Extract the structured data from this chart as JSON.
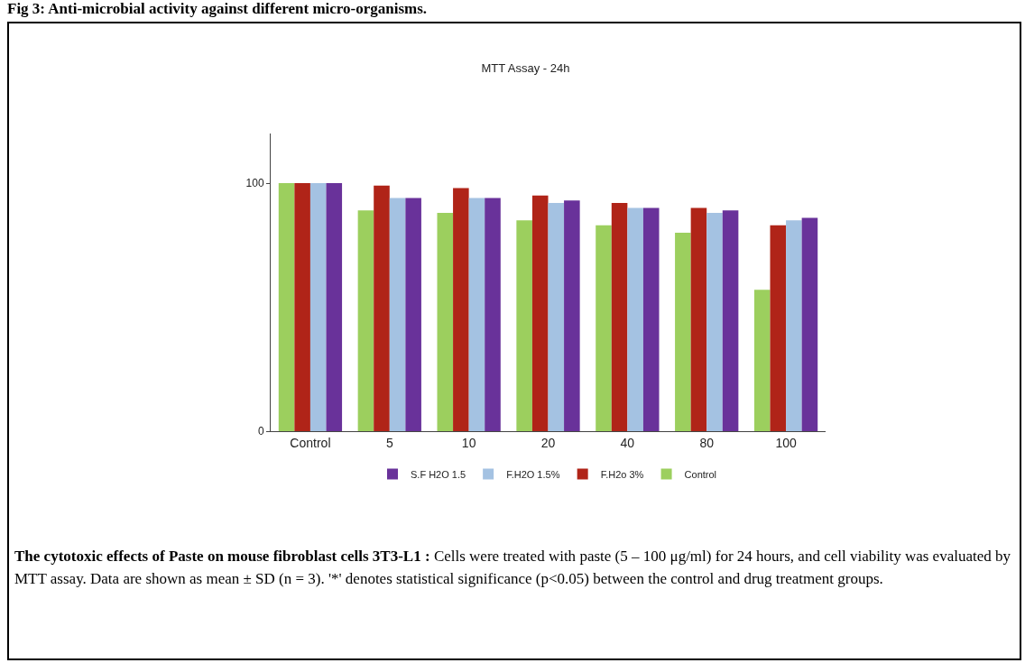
{
  "chart_data": {
    "type": "bar",
    "title": "MTT Assay - 24h",
    "categories": [
      "Control",
      "5",
      "10",
      "20",
      "40",
      "80",
      "100"
    ],
    "series": [
      {
        "name": "Control",
        "color": "#9ccf5e",
        "values": [
          100,
          89,
          88,
          85,
          83,
          80,
          57
        ]
      },
      {
        "name": "F.H2o 3%",
        "color": "#b02418",
        "values": [
          100,
          99,
          98,
          95,
          92,
          90,
          83
        ]
      },
      {
        "name": "F.H2O 1.5%",
        "color": "#a4c2e2",
        "values": [
          100,
          94,
          94,
          92,
          90,
          88,
          85
        ]
      },
      {
        "name": "S.F H2O 1.5",
        "color": "#69329a",
        "values": [
          100,
          94,
          94,
          93,
          90,
          89,
          86
        ]
      }
    ],
    "ylim": [
      0,
      120
    ],
    "yticks": [
      0,
      100
    ],
    "grid": false,
    "legend": "bottom",
    "annotations": [
      "Fig 3: Anti-microbial activity against different micro-organisms.",
      "The cytotoxic effects of Paste on mouse fibroblast cells 3T3-L1 :",
      "Cells were treated with paste (5 – 100 μg/ml) for 24 hours, and cell viability was evaluated by MTT assay. Data are shown as mean ± SD (n = 3). '*' denotes statistical significance (p<0.05) between the control and drug treatment groups."
    ]
  }
}
